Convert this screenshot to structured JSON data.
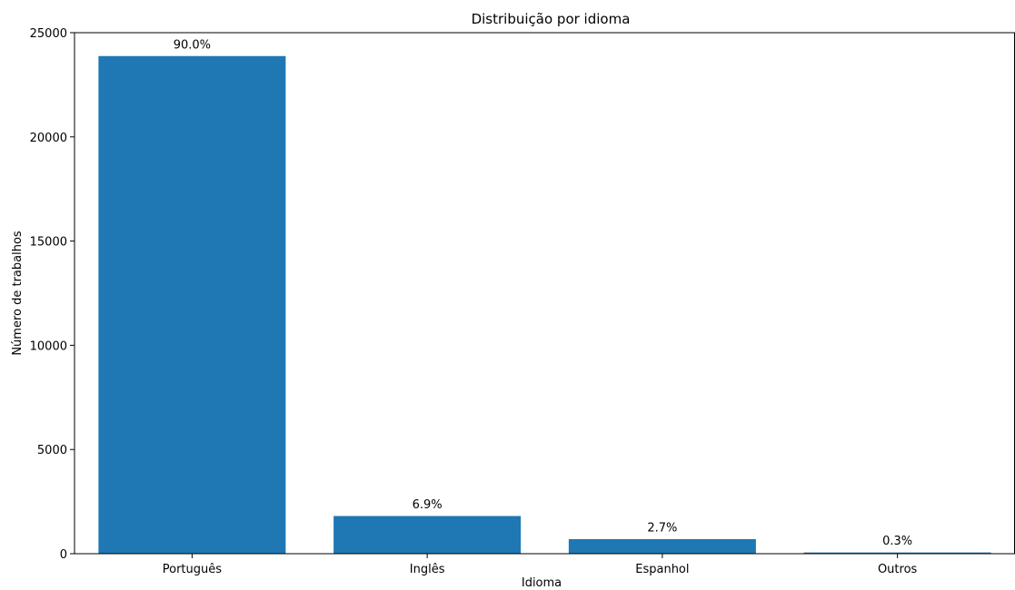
{
  "chart_data": {
    "type": "bar",
    "title": "Distribuição por idioma",
    "xlabel": "Idioma",
    "ylabel": "Número de trabalhos",
    "categories": [
      "Português",
      "Inglês",
      "Espanhol",
      "Outros"
    ],
    "values": [
      23900,
      1830,
      720,
      80
    ],
    "data_labels": [
      "90.0%",
      "6.9%",
      "2.7%",
      "0.3%"
    ],
    "ylim": [
      0,
      25000
    ],
    "yticks": [
      0,
      5000,
      10000,
      15000,
      20000,
      25000
    ],
    "ytick_labels": [
      "0",
      "5000",
      "10000",
      "15000",
      "20000",
      "25000"
    ],
    "grid": false,
    "colors": {
      "bar": "#1f77b4"
    }
  }
}
